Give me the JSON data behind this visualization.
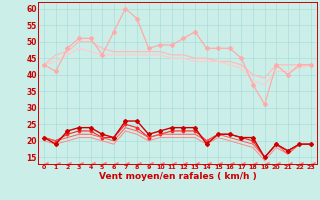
{
  "x": [
    0,
    1,
    2,
    3,
    4,
    5,
    6,
    7,
    8,
    9,
    10,
    11,
    12,
    13,
    14,
    15,
    16,
    17,
    18,
    19,
    20,
    21,
    22,
    23
  ],
  "bg_color": "#cceee8",
  "grid_color": "#aaddda",
  "xlabel": "Vent moyen/en rafales ( km/h )",
  "ylim": [
    13,
    62
  ],
  "yticks": [
    15,
    20,
    25,
    30,
    35,
    40,
    45,
    50,
    55,
    60
  ],
  "series": [
    {
      "y": [
        43,
        41,
        48,
        51,
        51,
        46,
        53,
        60,
        57,
        48,
        49,
        49,
        51,
        53,
        48,
        48,
        48,
        45,
        37,
        31,
        43,
        40,
        43,
        43
      ],
      "color": "#ffaaaa",
      "marker": "D",
      "ms": 2.0,
      "lw": 0.9,
      "zorder": 3
    },
    {
      "y": [
        43,
        46,
        47,
        50,
        50,
        48,
        47,
        47,
        47,
        47,
        47,
        46,
        46,
        45,
        45,
        44,
        44,
        43,
        40,
        39,
        43,
        43,
        43,
        43
      ],
      "color": "#ffbbbb",
      "marker": null,
      "ms": 0,
      "lw": 0.9,
      "zorder": 2
    },
    {
      "y": [
        43,
        44,
        46,
        48,
        47,
        46,
        46,
        46,
        46,
        46,
        46,
        45,
        45,
        44,
        44,
        44,
        43,
        42,
        38,
        37,
        41,
        41,
        42,
        43
      ],
      "color": "#ffcccc",
      "marker": null,
      "ms": 0,
      "lw": 0.9,
      "zorder": 2
    },
    {
      "y": [
        21,
        19,
        23,
        24,
        24,
        22,
        21,
        26,
        26,
        22,
        23,
        24,
        24,
        24,
        19,
        22,
        22,
        21,
        21,
        15,
        19,
        17,
        19,
        19
      ],
      "color": "#cc0000",
      "marker": "D",
      "ms": 2.0,
      "lw": 1.0,
      "zorder": 5
    },
    {
      "y": [
        21,
        20,
        22,
        23,
        23,
        21,
        21,
        25,
        24,
        21,
        22,
        23,
        23,
        23,
        20,
        22,
        22,
        21,
        20,
        15,
        19,
        17,
        19,
        19
      ],
      "color": "#ff2222",
      "marker": "D",
      "ms": 1.5,
      "lw": 0.8,
      "zorder": 4
    },
    {
      "y": [
        21,
        20,
        21,
        22,
        22,
        21,
        20,
        24,
        23,
        21,
        22,
        22,
        22,
        22,
        20,
        22,
        21,
        20,
        19,
        15,
        19,
        16,
        19,
        19
      ],
      "color": "#ff5555",
      "marker": null,
      "ms": 0,
      "lw": 0.7,
      "zorder": 4
    },
    {
      "y": [
        20,
        19,
        20,
        21,
        21,
        20,
        19,
        23,
        22,
        20,
        21,
        21,
        21,
        21,
        19,
        21,
        20,
        19,
        18,
        14,
        18,
        16,
        19,
        19
      ],
      "color": "#ff8888",
      "marker": null,
      "ms": 0,
      "lw": 0.7,
      "zorder": 3
    },
    {
      "y": [
        13,
        13,
        13,
        13,
        13,
        13,
        13,
        13,
        13,
        13,
        13,
        13,
        13,
        13,
        13,
        13,
        13,
        13,
        13,
        13,
        13,
        13,
        13,
        13
      ],
      "color": "#ff7777",
      "marker": 4,
      "ms": 3.5,
      "lw": 0.5,
      "zorder": 2
    }
  ]
}
